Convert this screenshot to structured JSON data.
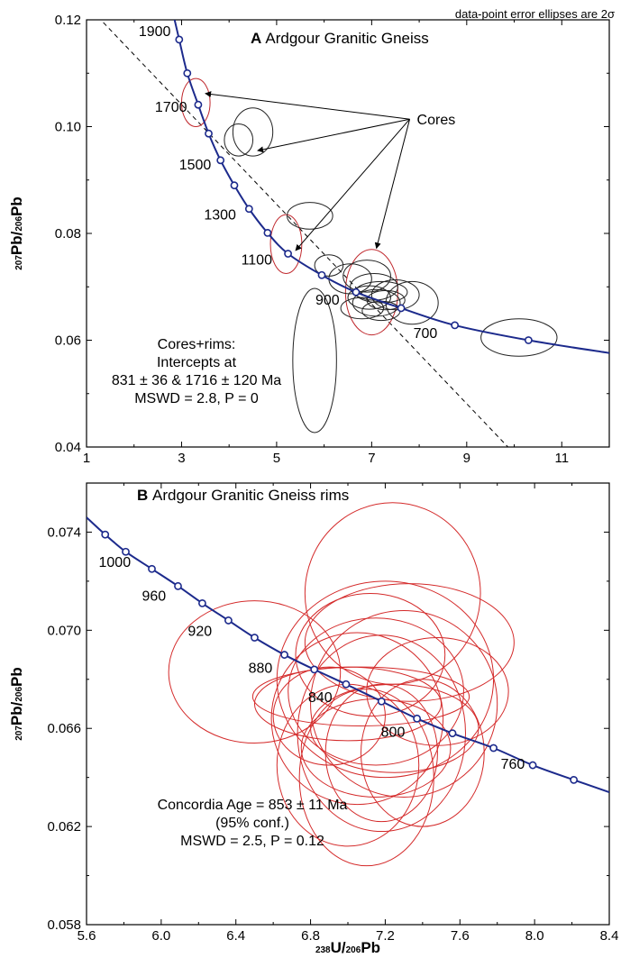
{
  "note": "data-point error ellipses are 2σ",
  "chart_data": [
    {
      "type": "scatter",
      "panel": "A",
      "title_letter": "A",
      "title": "Ardgour Granitic Gneiss",
      "xlabel_parts": [
        "238",
        "U/",
        "206",
        "Pb"
      ],
      "ylabel_parts": [
        "207",
        "Pb/",
        "206",
        "Pb"
      ],
      "xlim": [
        1,
        12
      ],
      "ylim": [
        0.04,
        0.12
      ],
      "xticks": [
        1,
        3,
        5,
        7,
        9,
        11
      ],
      "yticks": [
        "0.04",
        "0.06",
        "0.08",
        "0.10",
        "0.12"
      ],
      "concordia_ages": [
        {
          "label": "1900",
          "x": 2.95,
          "y": 0.1163
        },
        {
          "label": "1700",
          "x": 3.35,
          "y": 0.1041
        },
        {
          "label": "1500",
          "x": 3.82,
          "y": 0.0937
        },
        {
          "label": "1300",
          "x": 4.42,
          "y": 0.0846
        },
        {
          "label": "1100",
          "x": 5.24,
          "y": 0.0762
        },
        {
          "label": "900",
          "x": 6.67,
          "y": 0.069
        },
        {
          "label": "700",
          "x": 8.75,
          "y": 0.0628
        }
      ],
      "concordia_markers": [
        {
          "x": 2.95,
          "y": 0.1163
        },
        {
          "x": 3.12,
          "y": 0.11
        },
        {
          "x": 3.35,
          "y": 0.1041
        },
        {
          "x": 3.57,
          "y": 0.0987
        },
        {
          "x": 3.82,
          "y": 0.0937
        },
        {
          "x": 4.11,
          "y": 0.089
        },
        {
          "x": 4.42,
          "y": 0.0846
        },
        {
          "x": 4.81,
          "y": 0.0801
        },
        {
          "x": 5.24,
          "y": 0.0762
        },
        {
          "x": 5.95,
          "y": 0.0722
        },
        {
          "x": 6.67,
          "y": 0.069
        },
        {
          "x": 7.62,
          "y": 0.066
        },
        {
          "x": 8.75,
          "y": 0.0628
        },
        {
          "x": 10.3,
          "y": 0.06
        }
      ],
      "concordia_line": [
        [
          2.75,
          0.124
        ],
        [
          2.95,
          0.1163
        ],
        [
          3.12,
          0.11
        ],
        [
          3.35,
          0.1041
        ],
        [
          3.57,
          0.0987
        ],
        [
          3.82,
          0.0937
        ],
        [
          4.11,
          0.089
        ],
        [
          4.42,
          0.0846
        ],
        [
          4.81,
          0.0801
        ],
        [
          5.24,
          0.0762
        ],
        [
          5.95,
          0.0722
        ],
        [
          6.67,
          0.069
        ],
        [
          7.62,
          0.066
        ],
        [
          8.75,
          0.0628
        ],
        [
          10.3,
          0.06
        ],
        [
          12.0,
          0.0576
        ]
      ],
      "discordia_line": [
        [
          1.0,
          0.1228
        ],
        [
          9.9,
          0.0397
        ]
      ],
      "ellipses": [
        {
          "cx": 3.3,
          "cy": 0.1045,
          "rx": 0.3,
          "ry": 0.0045,
          "angle": 0,
          "color": "#c0282d",
          "group": "core"
        },
        {
          "cx": 4.5,
          "cy": 0.099,
          "rx": 0.42,
          "ry": 0.0045,
          "angle": 0,
          "color": "#222222",
          "group": "core"
        },
        {
          "cx": 4.2,
          "cy": 0.0975,
          "rx": 0.3,
          "ry": 0.003,
          "angle": 0,
          "color": "#222222",
          "group": "core"
        },
        {
          "cx": 5.2,
          "cy": 0.078,
          "rx": 0.33,
          "ry": 0.0055,
          "angle": 0,
          "color": "#c0282d",
          "group": "core"
        },
        {
          "cx": 5.7,
          "cy": 0.0833,
          "rx": 0.48,
          "ry": 0.0025,
          "angle": 0,
          "color": "#222222",
          "group": "core"
        },
        {
          "cx": 5.8,
          "cy": 0.0562,
          "rx": 0.46,
          "ry": 0.0135,
          "angle": 0,
          "color": "#222222",
          "group": "core"
        },
        {
          "cx": 7.0,
          "cy": 0.069,
          "rx": 0.55,
          "ry": 0.008,
          "angle": 0,
          "color": "#c0282d",
          "group": "core"
        },
        {
          "cx": 6.1,
          "cy": 0.074,
          "rx": 0.3,
          "ry": 0.002,
          "angle": 0,
          "color": "#222222",
          "group": "rim"
        },
        {
          "cx": 6.55,
          "cy": 0.0715,
          "rx": 0.45,
          "ry": 0.0028,
          "angle": 0,
          "color": "#222222",
          "group": "rim"
        },
        {
          "cx": 6.9,
          "cy": 0.072,
          "rx": 0.5,
          "ry": 0.003,
          "angle": 0,
          "color": "#222222",
          "group": "rim"
        },
        {
          "cx": 7.05,
          "cy": 0.07,
          "rx": 0.5,
          "ry": 0.0025,
          "angle": 0,
          "color": "#222222",
          "group": "rim"
        },
        {
          "cx": 7.2,
          "cy": 0.069,
          "rx": 0.55,
          "ry": 0.002,
          "angle": 0,
          "color": "#222222",
          "group": "rim"
        },
        {
          "cx": 6.95,
          "cy": 0.068,
          "rx": 0.45,
          "ry": 0.0022,
          "angle": 0,
          "color": "#222222",
          "group": "rim"
        },
        {
          "cx": 7.1,
          "cy": 0.067,
          "rx": 0.5,
          "ry": 0.0025,
          "angle": 0,
          "color": "#222222",
          "group": "rim"
        },
        {
          "cx": 7.3,
          "cy": 0.0675,
          "rx": 0.4,
          "ry": 0.0018,
          "angle": 0,
          "color": "#222222",
          "group": "rim"
        },
        {
          "cx": 7.5,
          "cy": 0.0685,
          "rx": 0.5,
          "ry": 0.0028,
          "angle": 0,
          "color": "#222222",
          "group": "rim"
        },
        {
          "cx": 7.85,
          "cy": 0.067,
          "rx": 0.55,
          "ry": 0.004,
          "angle": 0,
          "color": "#222222",
          "group": "rim"
        },
        {
          "cx": 6.8,
          "cy": 0.066,
          "rx": 0.45,
          "ry": 0.002,
          "angle": 0,
          "color": "#222222",
          "group": "rim"
        },
        {
          "cx": 7.2,
          "cy": 0.0655,
          "rx": 0.4,
          "ry": 0.0018,
          "angle": 0,
          "color": "#222222",
          "group": "rim"
        },
        {
          "cx": 10.1,
          "cy": 0.0605,
          "rx": 0.8,
          "ry": 0.0035,
          "angle": 0,
          "color": "#222222",
          "group": "rim"
        }
      ],
      "annotation_label": "Cores",
      "annotation_anchor": {
        "x": 7.8,
        "y": 0.1014
      },
      "annotation_targets": [
        {
          "x": 3.5,
          "y": 0.1062
        },
        {
          "x": 4.6,
          "y": 0.0955
        },
        {
          "x": 5.4,
          "y": 0.0768
        },
        {
          "x": 7.1,
          "y": 0.0772
        }
      ],
      "stats": [
        "Cores+rims:",
        "Intercepts at",
        "831 ± 36 & 1716 ± 120 Ma",
        "MSWD = 2.8, P = 0"
      ]
    },
    {
      "type": "scatter",
      "panel": "B",
      "title_letter": "B",
      "title": "Ardgour Granitic Gneiss rims",
      "xlabel_parts": [
        "238",
        "U/",
        "206",
        "Pb"
      ],
      "ylabel_parts": [
        "207",
        "Pb/",
        "206",
        "Pb"
      ],
      "xlim": [
        5.6,
        8.4
      ],
      "ylim": [
        0.058,
        0.076
      ],
      "xticks": [
        "5.6",
        "6.0",
        "6.4",
        "6.8",
        "7.2",
        "7.6",
        "8.0",
        "8.4"
      ],
      "yticks": [
        "0.058",
        "0.062",
        "0.066",
        "0.070",
        "0.074"
      ],
      "concordia_ages": [
        {
          "label": "1000",
          "x": 5.81,
          "y": 0.0732
        },
        {
          "label": "960",
          "x": 6.09,
          "y": 0.0718
        },
        {
          "label": "920",
          "x": 6.36,
          "y": 0.0704
        },
        {
          "label": "880",
          "x": 6.66,
          "y": 0.069
        },
        {
          "label": "840",
          "x": 6.99,
          "y": 0.0678
        },
        {
          "label": "800",
          "x": 7.37,
          "y": 0.0664
        },
        {
          "label": "760",
          "x": 7.78,
          "y": 0.0652
        }
      ],
      "concordia_markers": [
        {
          "x": 5.7,
          "y": 0.0739
        },
        {
          "x": 5.81,
          "y": 0.0732
        },
        {
          "x": 5.95,
          "y": 0.0725
        },
        {
          "x": 6.09,
          "y": 0.0718
        },
        {
          "x": 6.22,
          "y": 0.0711
        },
        {
          "x": 6.36,
          "y": 0.0704
        },
        {
          "x": 6.5,
          "y": 0.0697
        },
        {
          "x": 6.66,
          "y": 0.069
        },
        {
          "x": 6.82,
          "y": 0.0684
        },
        {
          "x": 6.99,
          "y": 0.0678
        },
        {
          "x": 7.18,
          "y": 0.0671
        },
        {
          "x": 7.37,
          "y": 0.0664
        },
        {
          "x": 7.56,
          "y": 0.0658
        },
        {
          "x": 7.78,
          "y": 0.0652
        },
        {
          "x": 7.99,
          "y": 0.0645
        },
        {
          "x": 8.21,
          "y": 0.0639
        }
      ],
      "concordia_line": [
        [
          5.6,
          0.0746
        ],
        [
          5.7,
          0.0739
        ],
        [
          5.81,
          0.0732
        ],
        [
          5.95,
          0.0725
        ],
        [
          6.09,
          0.0718
        ],
        [
          6.22,
          0.0711
        ],
        [
          6.36,
          0.0704
        ],
        [
          6.5,
          0.0697
        ],
        [
          6.66,
          0.069
        ],
        [
          6.82,
          0.0684
        ],
        [
          6.99,
          0.0678
        ],
        [
          7.18,
          0.0671
        ],
        [
          7.37,
          0.0664
        ],
        [
          7.56,
          0.0658
        ],
        [
          7.78,
          0.0652
        ],
        [
          7.99,
          0.0645
        ],
        [
          8.21,
          0.0639
        ],
        [
          8.4,
          0.0634
        ]
      ],
      "ellipses": [
        {
          "cx": 7.24,
          "cy": 0.0715,
          "rx": 0.47,
          "ry": 0.0037,
          "angle": 0,
          "color": "#d42a2a"
        },
        {
          "cx": 6.5,
          "cy": 0.0683,
          "rx": 0.46,
          "ry": 0.0029,
          "angle": 0,
          "color": "#d42a2a"
        },
        {
          "cx": 7.33,
          "cy": 0.0695,
          "rx": 0.56,
          "ry": 0.0024,
          "angle": 0,
          "color": "#d42a2a"
        },
        {
          "cx": 7.2,
          "cy": 0.068,
          "rx": 0.58,
          "ry": 0.004,
          "angle": 0,
          "color": "#d42a2a"
        },
        {
          "cx": 7.3,
          "cy": 0.067,
          "rx": 0.5,
          "ry": 0.0038,
          "angle": 0,
          "color": "#d42a2a"
        },
        {
          "cx": 7.15,
          "cy": 0.0675,
          "rx": 0.47,
          "ry": 0.003,
          "angle": 0,
          "color": "#d42a2a"
        },
        {
          "cx": 7.12,
          "cy": 0.069,
          "rx": 0.4,
          "ry": 0.0025,
          "angle": 0,
          "color": "#d42a2a"
        },
        {
          "cx": 7.05,
          "cy": 0.0664,
          "rx": 0.46,
          "ry": 0.0035,
          "angle": 0,
          "color": "#d42a2a"
        },
        {
          "cx": 7.18,
          "cy": 0.0658,
          "rx": 0.45,
          "ry": 0.004,
          "angle": 0,
          "color": "#d42a2a"
        },
        {
          "cx": 7.0,
          "cy": 0.067,
          "rx": 0.5,
          "ry": 0.0015,
          "angle": 0,
          "color": "#d42a2a"
        },
        {
          "cx": 7.07,
          "cy": 0.0673,
          "rx": 0.58,
          "ry": 0.0012,
          "angle": 0,
          "color": "#d42a2a"
        },
        {
          "cx": 7.25,
          "cy": 0.066,
          "rx": 0.45,
          "ry": 0.0018,
          "angle": 0,
          "color": "#d42a2a"
        },
        {
          "cx": 7.15,
          "cy": 0.0652,
          "rx": 0.4,
          "ry": 0.002,
          "angle": 0,
          "color": "#d42a2a"
        },
        {
          "cx": 7.0,
          "cy": 0.0645,
          "rx": 0.38,
          "ry": 0.0033,
          "angle": 0,
          "color": "#d42a2a"
        },
        {
          "cx": 7.1,
          "cy": 0.064,
          "rx": 0.36,
          "ry": 0.0036,
          "angle": 0,
          "color": "#d42a2a"
        },
        {
          "cx": 7.18,
          "cy": 0.065,
          "rx": 0.3,
          "ry": 0.0028,
          "angle": 0,
          "color": "#d42a2a"
        },
        {
          "cx": 7.4,
          "cy": 0.065,
          "rx": 0.33,
          "ry": 0.003,
          "angle": 0,
          "color": "#d42a2a"
        },
        {
          "cx": 6.9,
          "cy": 0.0665,
          "rx": 0.3,
          "ry": 0.002,
          "angle": 0,
          "color": "#d42a2a"
        },
        {
          "cx": 7.48,
          "cy": 0.0675,
          "rx": 0.38,
          "ry": 0.0022,
          "angle": 0,
          "color": "#d42a2a"
        }
      ],
      "stats": [
        "Concordia Age = 853 ± 11 Ma",
        "(95% conf.)",
        "MSWD = 2.5, P = 0.12"
      ]
    }
  ]
}
